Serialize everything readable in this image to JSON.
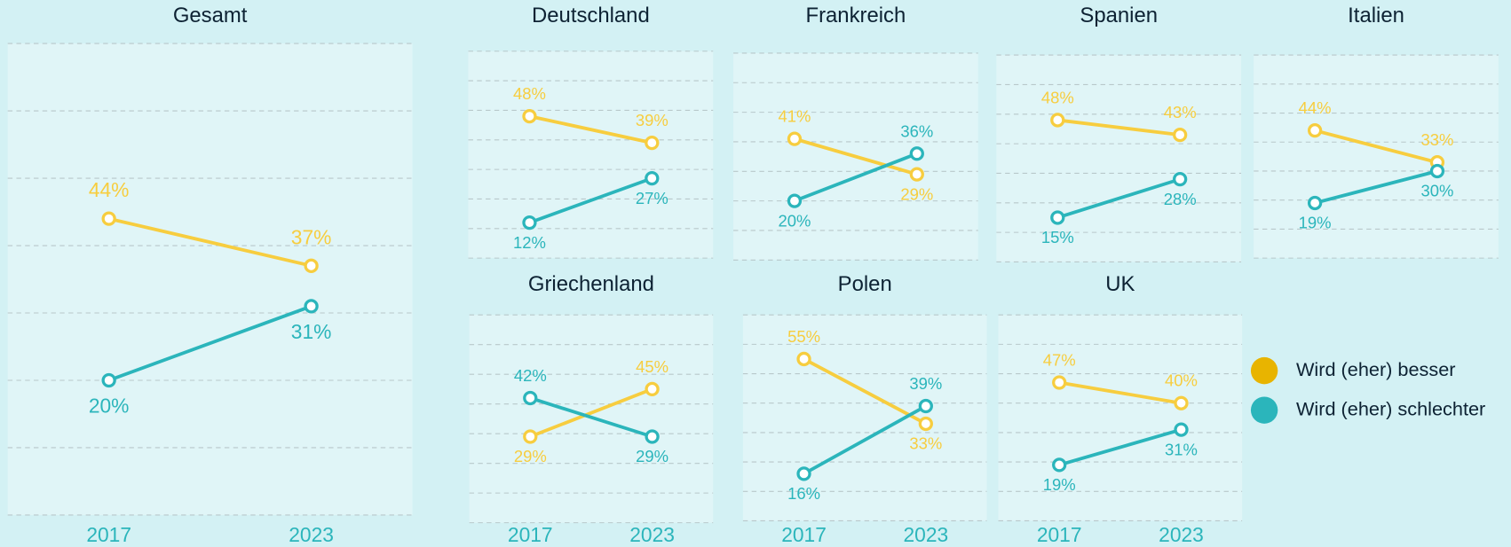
{
  "chart_data": [
    {
      "type": "line",
      "title": "Gesamt",
      "categories": [
        "2017",
        "2023"
      ],
      "ylim": [
        0,
        70
      ],
      "yticks": [
        0,
        10,
        20,
        30,
        40,
        50,
        60,
        70
      ],
      "grid": true,
      "series": [
        {
          "color": "#f7cd3f",
          "values": [
            44,
            37
          ],
          "value_labels": [
            "44%",
            "37%"
          ]
        },
        {
          "color": "#2bb5bb",
          "values": [
            20,
            31
          ],
          "value_labels": [
            "20%",
            "31%"
          ]
        }
      ]
    },
    {
      "type": "line",
      "title": "Deutschland",
      "categories": [
        null,
        null
      ],
      "ylim": [
        0,
        70
      ],
      "yticks": [
        0,
        10,
        20,
        30,
        40,
        50,
        60,
        70
      ],
      "grid": true,
      "series": [
        {
          "color": "#f7cd3f",
          "values": [
            48,
            39
          ],
          "value_labels": [
            "48%",
            "39%"
          ]
        },
        {
          "color": "#2bb5bb",
          "values": [
            12,
            27
          ],
          "value_labels": [
            "12%",
            "27%"
          ]
        }
      ]
    },
    {
      "type": "line",
      "title": "Frankreich",
      "categories": [
        null,
        null
      ],
      "ylim": [
        0,
        70
      ],
      "yticks": [
        0,
        10,
        20,
        30,
        40,
        50,
        60,
        70
      ],
      "grid": true,
      "series": [
        {
          "color": "#f7cd3f",
          "values": [
            41,
            29
          ],
          "value_labels": [
            "41%",
            "29%"
          ]
        },
        {
          "color": "#2bb5bb",
          "values": [
            20,
            36
          ],
          "value_labels": [
            "20%",
            "36%"
          ]
        }
      ]
    },
    {
      "type": "line",
      "title": "Spanien",
      "categories": [
        null,
        null
      ],
      "ylim": [
        0,
        70
      ],
      "yticks": [
        0,
        10,
        20,
        30,
        40,
        50,
        60,
        70
      ],
      "grid": true,
      "series": [
        {
          "color": "#f7cd3f",
          "values": [
            48,
            43
          ],
          "value_labels": [
            "48%",
            "43%"
          ]
        },
        {
          "color": "#2bb5bb",
          "values": [
            15,
            28
          ],
          "value_labels": [
            "15%",
            "28%"
          ]
        }
      ]
    },
    {
      "type": "line",
      "title": "Italien",
      "categories": [
        null,
        null
      ],
      "ylim": [
        0,
        70
      ],
      "yticks": [
        0,
        10,
        20,
        30,
        40,
        50,
        60,
        70
      ],
      "grid": true,
      "series": [
        {
          "color": "#f7cd3f",
          "values": [
            44,
            33
          ],
          "value_labels": [
            "44%",
            "33%"
          ]
        },
        {
          "color": "#2bb5bb",
          "values": [
            19,
            30
          ],
          "value_labels": [
            "19%",
            "30%"
          ]
        }
      ]
    },
    {
      "type": "line",
      "title": "Griechenland",
      "categories": [
        "2017",
        "2023"
      ],
      "ylim": [
        0,
        70
      ],
      "yticks": [
        0,
        10,
        20,
        30,
        40,
        50,
        60,
        70
      ],
      "grid": true,
      "series": [
        {
          "color": "#f7cd3f",
          "values": [
            29,
            45
          ],
          "value_labels": [
            "29%",
            "45%"
          ]
        },
        {
          "color": "#2bb5bb",
          "values": [
            42,
            29
          ],
          "value_labels": [
            "42%",
            "29%"
          ]
        }
      ]
    },
    {
      "type": "line",
      "title": "Polen",
      "categories": [
        "2017",
        "2023"
      ],
      "ylim": [
        0,
        70
      ],
      "yticks": [
        0,
        10,
        20,
        30,
        40,
        50,
        60,
        70
      ],
      "grid": true,
      "series": [
        {
          "color": "#f7cd3f",
          "values": [
            55,
            33
          ],
          "value_labels": [
            "55%",
            "33%"
          ]
        },
        {
          "color": "#2bb5bb",
          "values": [
            16,
            39
          ],
          "value_labels": [
            "16%",
            "39%"
          ]
        }
      ]
    },
    {
      "type": "line",
      "title": "UK",
      "categories": [
        "2017",
        "2023"
      ],
      "ylim": [
        0,
        70
      ],
      "yticks": [
        0,
        10,
        20,
        30,
        40,
        50,
        60,
        70
      ],
      "grid": true,
      "series": [
        {
          "color": "#f7cd3f",
          "values": [
            47,
            40
          ],
          "value_labels": [
            "47%",
            "40%"
          ]
        },
        {
          "color": "#2bb5bb",
          "values": [
            19,
            31
          ],
          "value_labels": [
            "19%",
            "31%"
          ]
        }
      ]
    }
  ],
  "legend": [
    {
      "name": "Wird (eher) besser",
      "color": "#e8b400"
    },
    {
      "name": "Wird (eher) schlechter",
      "color": "#2bb5bb"
    }
  ]
}
